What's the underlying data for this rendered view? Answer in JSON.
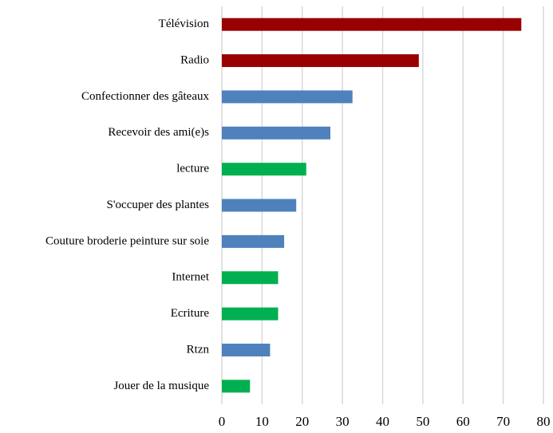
{
  "chart_data": {
    "type": "bar",
    "orientation": "horizontal",
    "categories": [
      "Télévision",
      "Radio",
      "Confectionner des gâteaux",
      "Recevoir des ami(e)s",
      "lecture",
      "S'occuper des plantes",
      "Couture broderie peinture sur soie",
      "Internet",
      "Ecriture",
      "Rtzn",
      "Jouer de la musique"
    ],
    "values": [
      74.5,
      49,
      32.5,
      27,
      21,
      18.5,
      15.5,
      14,
      14,
      12,
      7
    ],
    "colors": [
      "#990000",
      "#990000",
      "#4f81bd",
      "#4f81bd",
      "#00b050",
      "#4f81bd",
      "#4f81bd",
      "#00b050",
      "#00b050",
      "#4f81bd",
      "#00b050"
    ],
    "xlim": [
      0,
      80
    ],
    "xticks": [
      0,
      10,
      20,
      30,
      40,
      50,
      60,
      70,
      80
    ],
    "grid": true
  }
}
